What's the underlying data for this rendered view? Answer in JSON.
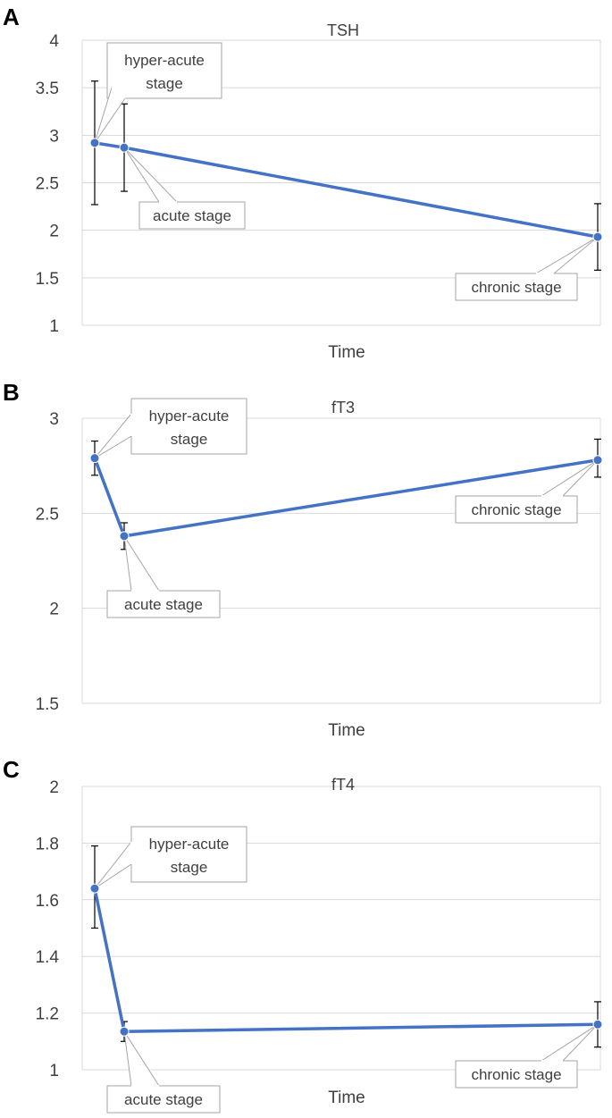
{
  "chart_data": [
    {
      "panel": "A",
      "type": "line",
      "title": "TSH",
      "xlabel": "Time",
      "ylabel": "",
      "ylim": [
        1,
        4
      ],
      "yticks": [
        "1",
        "1.5",
        "2",
        "2.5",
        "3",
        "3.5",
        "4"
      ],
      "grid": true,
      "legend": "none",
      "series": [
        {
          "values": [
            2.92,
            2.87,
            1.93
          ],
          "error_low": [
            2.27,
            2.41,
            1.58
          ],
          "error_high": [
            3.57,
            3.33,
            2.28
          ],
          "labels": [
            "hyper-acute stage",
            "acute stage",
            "chronic stage"
          ]
        }
      ],
      "x": [
        0,
        0.06,
        1
      ]
    },
    {
      "panel": "B",
      "type": "line",
      "title": "fT3",
      "xlabel": "Time",
      "ylabel": "",
      "ylim": [
        1.5,
        3
      ],
      "yticks": [
        "1.5",
        "2",
        "2.5",
        "3"
      ],
      "grid": true,
      "legend": "none",
      "series": [
        {
          "values": [
            2.79,
            2.38,
            2.78
          ],
          "error_low": [
            2.7,
            2.31,
            2.69
          ],
          "error_high": [
            2.88,
            2.45,
            2.89
          ],
          "labels": [
            "hyper-acute stage",
            "acute stage",
            "chronic stage"
          ]
        }
      ],
      "x": [
        0,
        0.06,
        1
      ]
    },
    {
      "panel": "C",
      "type": "line",
      "title": "fT4",
      "xlabel": "Time",
      "ylabel": "",
      "ylim": [
        1,
        2
      ],
      "yticks": [
        "1",
        "1.2",
        "1.4",
        "1.6",
        "1.8",
        "2"
      ],
      "grid": true,
      "legend": "none",
      "series": [
        {
          "values": [
            1.64,
            1.135,
            1.16
          ],
          "error_low": [
            1.5,
            1.1,
            1.08
          ],
          "error_high": [
            1.79,
            1.17,
            1.24
          ],
          "labels": [
            "hyper-acute stage",
            "acute stage",
            "chronic stage"
          ]
        }
      ],
      "x": [
        0,
        0.06,
        1
      ]
    }
  ],
  "colors": {
    "series": "#4472c4",
    "grid": "#d9d9d9",
    "text": "#404040",
    "callout_border": "#a6a6a6"
  }
}
